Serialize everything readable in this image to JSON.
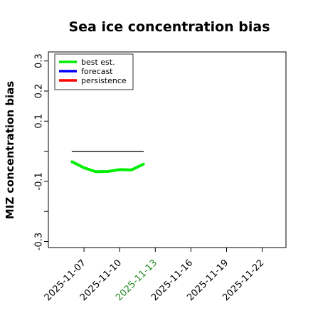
{
  "chart_data": {
    "type": "line",
    "title": "Sea ice concentration bias",
    "xlabel": "",
    "ylabel": "MIZ concentration bias",
    "x_ticks": [
      "2025-11-07",
      "2025-11-10",
      "2025-11-13",
      "2025-11-16",
      "2025-11-19",
      "2025-11-22"
    ],
    "x_tick_colors": [
      "#000000",
      "#000000",
      "#228b22",
      "#000000",
      "#000000",
      "#000000"
    ],
    "xlim_days": [
      4,
      24
    ],
    "y_ticks": [
      0.3,
      0.2,
      0.1,
      -0.1,
      -0.3
    ],
    "y_tick_labels": [
      "0.3",
      "0.2",
      "0.1",
      "-0.1",
      "-0.3"
    ],
    "ylim": [
      -0.32,
      0.33
    ],
    "legend": {
      "placement": "top-left",
      "entries": [
        {
          "label": "best est.",
          "color": "#00ee00"
        },
        {
          "label": "forecast",
          "color": "#0000ff"
        },
        {
          "label": "persistence",
          "color": "#ff0000"
        }
      ]
    },
    "series": [
      {
        "name": "best est.",
        "color": "#00ee00",
        "x": [
          "2025-11-06",
          "2025-11-07",
          "2025-11-08",
          "2025-11-09",
          "2025-11-10",
          "2025-11-11",
          "2025-11-12"
        ],
        "y": [
          -0.035,
          -0.055,
          -0.068,
          -0.067,
          -0.061,
          -0.062,
          -0.043
        ]
      },
      {
        "name": "",
        "color": "#000000",
        "x": [
          "2025-11-06",
          "2025-11-12"
        ],
        "y": [
          0.0,
          0.0
        ]
      }
    ]
  }
}
